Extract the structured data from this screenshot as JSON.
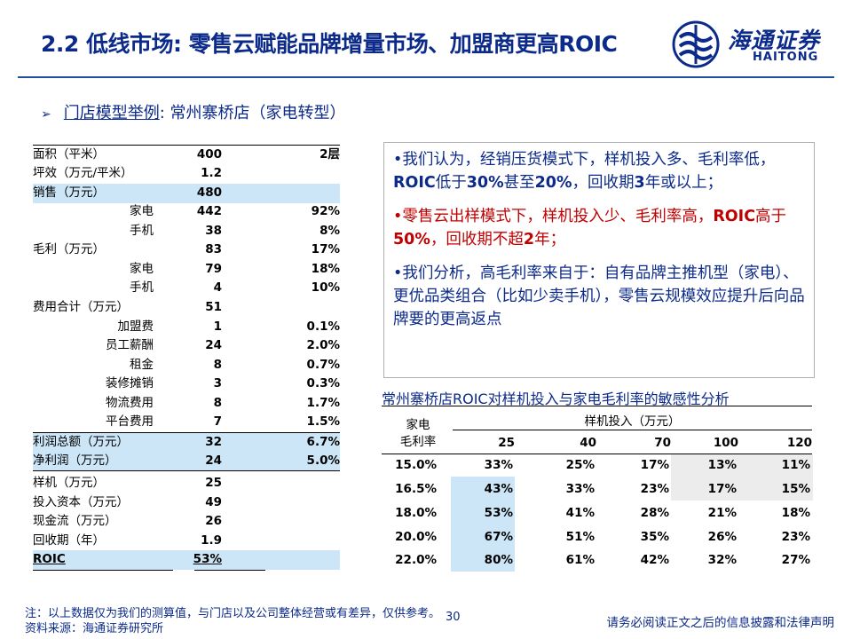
{
  "title": "2.2 低线市场: 零售云赋能品牌增量市场、加盟商更高ROIC",
  "logo": {
    "cn": "海通证券",
    "en": "HAITONG"
  },
  "subtitle": {
    "arrow": "➢",
    "label": "门店模型举例",
    "rest": ": 常州寨桥店（家电转型）"
  },
  "left_table": [
    {
      "label": "面积（平米）",
      "value": "400",
      "extra": "2层"
    },
    {
      "label": "坪效（万元/平米）",
      "value": "1.2",
      "extra": ""
    },
    {
      "label": "销售（万元）",
      "value": "480",
      "extra": ""
    },
    {
      "label": "家电",
      "value": "442",
      "extra": "92%"
    },
    {
      "label": "手机",
      "value": "38",
      "extra": "8%"
    },
    {
      "label": "毛利（万元）",
      "value": "83",
      "extra": "17%"
    },
    {
      "label": "家电",
      "value": "79",
      "extra": "18%"
    },
    {
      "label": "手机",
      "value": "4",
      "extra": "10%"
    },
    {
      "label": "费用合计（万元）",
      "value": "51",
      "extra": ""
    },
    {
      "label": "加盟费",
      "value": "1",
      "extra": "0.1%"
    },
    {
      "label": "员工薪酬",
      "value": "24",
      "extra": "2.0%"
    },
    {
      "label": "租金",
      "value": "8",
      "extra": "0.7%"
    },
    {
      "label": "装修摊销",
      "value": "3",
      "extra": "0.3%"
    },
    {
      "label": "物流费用",
      "value": "8",
      "extra": "1.7%"
    },
    {
      "label": "平台费用",
      "value": "7",
      "extra": "1.5%"
    },
    {
      "label": "利润总额（万元）",
      "value": "32",
      "extra": "6.7%"
    },
    {
      "label": "净利润（万元）",
      "value": "24",
      "extra": "5.0%"
    },
    {
      "label": "样机（万元）",
      "value": "25",
      "extra": ""
    },
    {
      "label": "投入资本（万元）",
      "value": "49",
      "extra": ""
    },
    {
      "label": "现金流（万元）",
      "value": "26",
      "extra": ""
    },
    {
      "label": "回收期（年）",
      "value": "1.9",
      "extra": ""
    },
    {
      "label": "ROIC",
      "value": "53%",
      "extra": ""
    }
  ],
  "notes": {
    "p1": [
      {
        "t": "•我们认为，经销压货模式下，样机投入多、毛利率低，",
        "b": false
      },
      {
        "t": "ROIC",
        "b": true
      },
      {
        "t": "低于",
        "b": false
      },
      {
        "t": "30%",
        "b": true
      },
      {
        "t": "甚至",
        "b": false
      },
      {
        "t": "20%",
        "b": true
      },
      {
        "t": "，回收期",
        "b": false
      },
      {
        "t": "3",
        "b": true
      },
      {
        "t": "年或以上；",
        "b": false
      }
    ],
    "p2": [
      {
        "t": "•零售云出样模式下，样机投入少、毛利率高，",
        "b": false
      },
      {
        "t": "ROIC",
        "b": true
      },
      {
        "t": "高于",
        "b": false
      },
      {
        "t": "50%",
        "b": true
      },
      {
        "t": "，回收期不超",
        "b": false
      },
      {
        "t": "2",
        "b": true
      },
      {
        "t": "年；",
        "b": false
      }
    ],
    "p3": "•我们分析，高毛利率来自于：自有品牌主推机型（家电）、更优品类组合（比如少卖手机），零售云规模效应提升后向品牌要的更高返点"
  },
  "sensitivity": {
    "title": "常州寨桥店ROIC对样机投入与家电毛利率的敏感性分析",
    "row_header": "家电\n毛利率",
    "col_group": "样机投入（万元）",
    "cols": [
      "25",
      "40",
      "70",
      "100",
      "120"
    ],
    "rows": [
      {
        "label": "15.0%",
        "values": [
          "33%",
          "25%",
          "17%",
          "13%",
          "11%"
        ]
      },
      {
        "label": "16.5%",
        "values": [
          "43%",
          "33%",
          "23%",
          "17%",
          "15%"
        ]
      },
      {
        "label": "18.0%",
        "values": [
          "53%",
          "41%",
          "28%",
          "21%",
          "18%"
        ]
      },
      {
        "label": "20.0%",
        "values": [
          "67%",
          "51%",
          "35%",
          "26%",
          "23%"
        ]
      },
      {
        "label": "22.0%",
        "values": [
          "80%",
          "61%",
          "42%",
          "32%",
          "27%"
        ]
      }
    ]
  },
  "footnotes": {
    "note": "注：以上数据仅为我们的测算值，与门店以及公司整体经营或有差异，仅供参考。",
    "source": "资料来源：海通证券研究所"
  },
  "page_number": "30",
  "disclaimer": "请务必阅读正文之后的信息披露和法律声明",
  "colors": {
    "title_blue": "#0b2a8a",
    "highlight": "#cce6f7",
    "red": "#c00000"
  }
}
